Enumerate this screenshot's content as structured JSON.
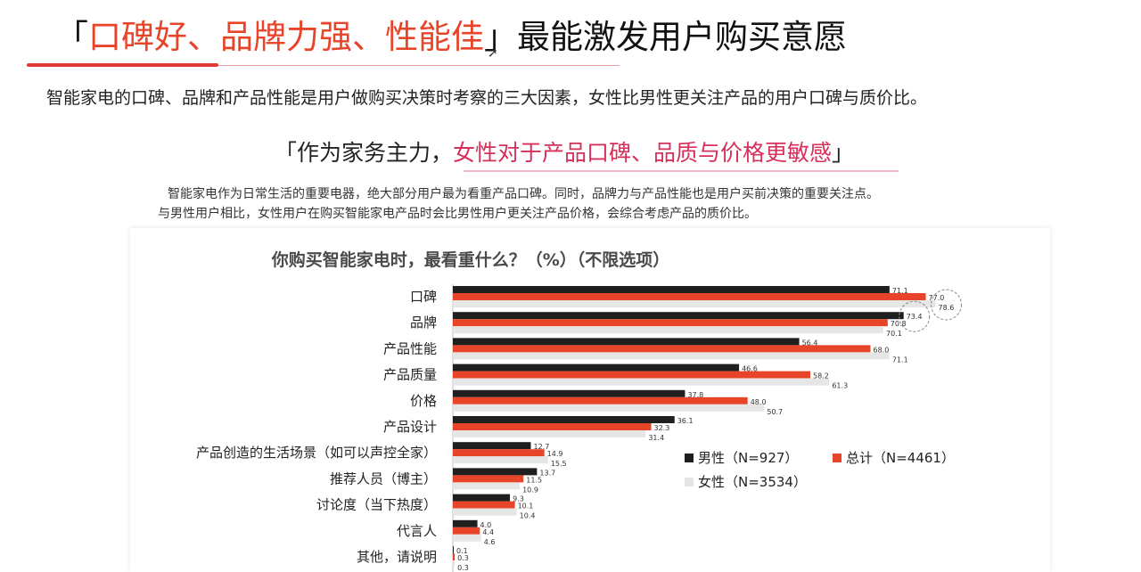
{
  "header": {
    "bracket_open": "「",
    "highlight": "口碑好、品牌力强、性能佳",
    "bracket_close": "」",
    "rest": "最能激发用户购买意愿"
  },
  "intro": "智能家电的口碑、品牌和产品性能是用户做购买决策时考察的三大因素，女性比男性更关注产品的用户口碑与质价比。",
  "sub_heading": {
    "open": "「作为家务主力，",
    "highlight": "女性对于产品口碑、品质与价格更敏感",
    "close": "」"
  },
  "description": {
    "line1": "智能家电作为日常生活的重要电器，绝大部分用户最为看重产品口碑。同时，品牌力与产品性能也是用户买前决策的重要关注点。",
    "line2": "与男性用户相比，女性用户在购买智能家电产品时会比男性用户更关注产品价格，会综合考虑产品的质价比。"
  },
  "colors": {
    "male": "#1f1f1f",
    "total": "#e8442a",
    "female": "#e6e6e6",
    "accent": "#e8442a"
  },
  "chart_data": {
    "type": "bar",
    "orientation": "horizontal",
    "title": "你购买智能家电时，最看重什么？（%）（不限选项）",
    "categories": [
      "口碑",
      "品牌",
      "产品性能",
      "产品质量",
      "价格",
      "产品设计",
      "产品创造的生活场景（如可以声控全家）",
      "推荐人员（博主）",
      "讨论度（当下热度）",
      "代言人",
      "其他，请说明"
    ],
    "series": [
      {
        "name": "男性（N=927）",
        "values": [
          71.1,
          73.4,
          56.4,
          46.6,
          37.8,
          36.1,
          12.7,
          13.7,
          9.3,
          4.0,
          0.1
        ]
      },
      {
        "name": "总计（N=4461）",
        "values": [
          77.0,
          70.8,
          68.0,
          58.2,
          48.0,
          32.3,
          14.9,
          11.5,
          10.1,
          4.4,
          0.3
        ]
      },
      {
        "name": "女性（N=3534）",
        "values": [
          78.6,
          70.1,
          71.1,
          61.3,
          50.7,
          31.4,
          15.5,
          10.9,
          10.4,
          4.6,
          0.3
        ]
      }
    ],
    "value_labels": [
      [
        "71.1",
        "77.0",
        "78.6"
      ],
      [
        "73.4",
        "70.8",
        "70.1"
      ],
      [
        "56.4",
        "68.0",
        "71.1"
      ],
      [
        "46.6",
        "58.2",
        "61.3"
      ],
      [
        "37.8",
        "48.0",
        "50.7"
      ],
      [
        "36.1",
        "32.3",
        "31.4"
      ],
      [
        "12.7",
        "14.9",
        "15.5"
      ],
      [
        "13.7",
        "11.5",
        "10.9"
      ],
      [
        "9.3",
        "10.1",
        "10.4"
      ],
      [
        "4.0",
        "4.4",
        "4.6"
      ],
      [
        "0.1",
        "0.3",
        "0.3"
      ]
    ],
    "xlim": [
      0,
      100
    ],
    "grid": false,
    "legend_position": "right-middle",
    "highlighted_values": [
      "78.6",
      "73.4"
    ]
  }
}
